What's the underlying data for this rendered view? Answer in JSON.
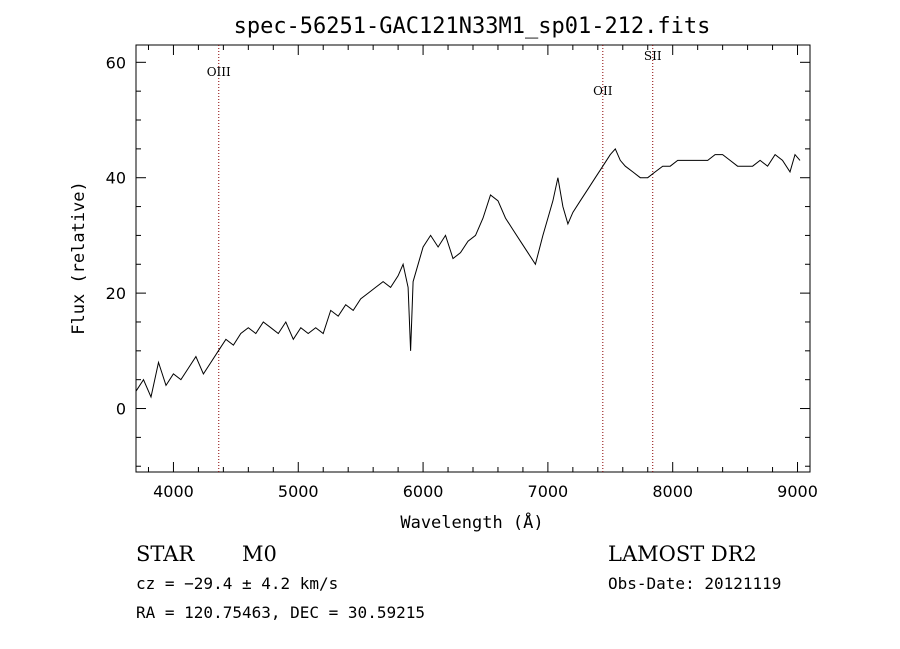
{
  "chart_data": {
    "type": "line",
    "title": "spec-56251-GAC121N33M1_sp01-212.fits",
    "xlabel": "Wavelength (Å)",
    "ylabel": "Flux (relative)",
    "xlim": [
      3700,
      9100
    ],
    "ylim": [
      -11,
      63
    ],
    "xticks": [
      4000,
      5000,
      6000,
      7000,
      8000,
      9000
    ],
    "yticks": [
      0,
      20,
      40,
      60
    ],
    "grid": false,
    "series": [
      {
        "x": [
          3700,
          3760,
          3820,
          3880,
          3940,
          4000,
          4060,
          4120,
          4180,
          4240,
          4300,
          4360,
          4420,
          4480,
          4540,
          4600,
          4660,
          4720,
          4780,
          4840,
          4900,
          4960,
          5020,
          5080,
          5140,
          5200,
          5260,
          5320,
          5380,
          5440,
          5500,
          5560,
          5620,
          5680,
          5740,
          5800,
          5840,
          5880,
          5900,
          5920,
          5960,
          6000,
          6060,
          6120,
          6180,
          6240,
          6300,
          6360,
          6420,
          6480,
          6540,
          6600,
          6660,
          6720,
          6780,
          6840,
          6900,
          6960,
          7000,
          7040,
          7080,
          7120,
          7160,
          7200,
          7260,
          7320,
          7380,
          7440,
          7500,
          7540,
          7580,
          7620,
          7680,
          7740,
          7800,
          7860,
          7920,
          7980,
          8040,
          8100,
          8160,
          8220,
          8280,
          8340,
          8400,
          8460,
          8520,
          8580,
          8640,
          8700,
          8760,
          8820,
          8880,
          8940,
          8980,
          9020
        ],
        "y": [
          3,
          5,
          2,
          8,
          4,
          6,
          5,
          7,
          9,
          6,
          8,
          10,
          12,
          11,
          13,
          14,
          13,
          15,
          14,
          13,
          15,
          12,
          14,
          13,
          14,
          13,
          17,
          16,
          18,
          17,
          19,
          20,
          21,
          22,
          21,
          23,
          25,
          21,
          10,
          22,
          25,
          28,
          30,
          28,
          30,
          26,
          27,
          29,
          30,
          33,
          37,
          36,
          33,
          31,
          29,
          27,
          25,
          30,
          33,
          36,
          40,
          35,
          32,
          34,
          36,
          38,
          40,
          42,
          44,
          45,
          43,
          42,
          41,
          40,
          40,
          41,
          42,
          42,
          43,
          43,
          43,
          43,
          43,
          44,
          44,
          43,
          42,
          42,
          42,
          43,
          42,
          44,
          43,
          41,
          44,
          43
        ]
      }
    ],
    "annotations": [
      {
        "label": "OIII",
        "x": 4363
      },
      {
        "label": "OII",
        "x": 7440
      },
      {
        "label": "SII",
        "x": 7840
      }
    ]
  },
  "info": {
    "class": "STAR",
    "subclass": "M0",
    "cz": "cz = −29.4 ± 4.2 km/s",
    "coords": "RA = 120.75463, DEC =  30.59215",
    "survey": "LAMOST DR2",
    "obsdate": "Obs-Date: 20121119"
  },
  "colors": {
    "line": "#000000",
    "annotation_line": "#8b0000",
    "text": "#000000"
  }
}
